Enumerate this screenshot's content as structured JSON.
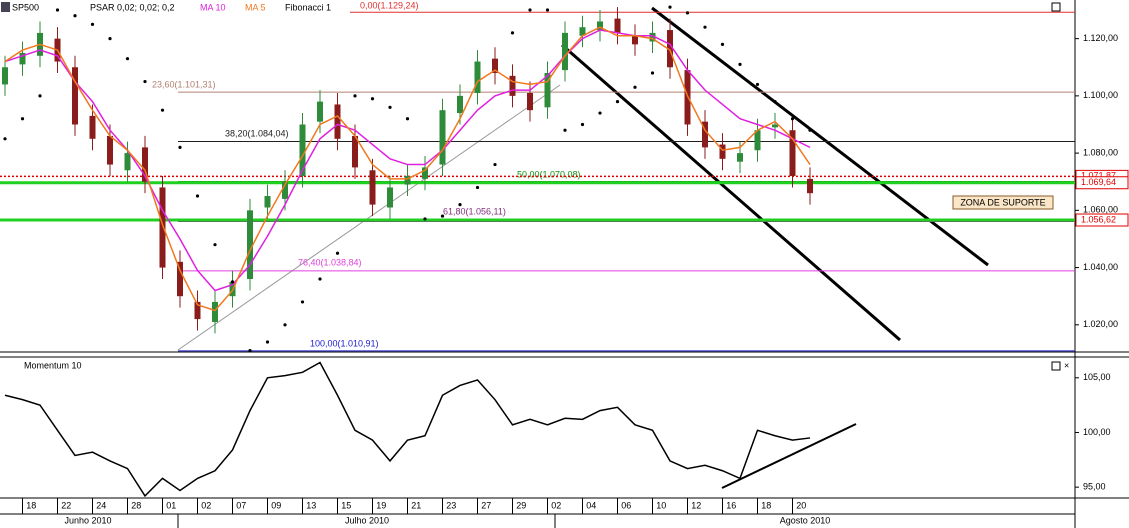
{
  "chart_data": {
    "type": "candlestick",
    "title": "SP500",
    "categories": [
      null,
      null,
      "18",
      null,
      "22",
      null,
      "24",
      null,
      "28",
      null,
      "01",
      null,
      "02",
      null,
      "07",
      null,
      "09",
      null,
      "13",
      null,
      "15",
      null,
      "19",
      null,
      "21",
      null,
      "23",
      null,
      "27",
      null,
      "29",
      null,
      "02",
      null,
      "04",
      null,
      "06",
      null,
      "10",
      null,
      "12",
      null,
      "16",
      null,
      "18",
      null,
      "20"
    ],
    "months": [
      "Junho 2010",
      "Julho 2010",
      "Agosto 2010"
    ],
    "candles": {
      "up_color": "#2e8b3a",
      "down_color": "#8b1c1c",
      "open": [
        1104,
        1111,
        1114,
        1120,
        1110,
        1093,
        1086,
        1074,
        1082,
        1068,
        1042,
        1028,
        1021,
        1030,
        1036,
        1061,
        1064,
        1072,
        1091,
        1097,
        1086,
        1074,
        1061,
        1069,
        1071,
        1076,
        1094,
        1101,
        1113,
        1107,
        1101,
        1096,
        1109,
        1121,
        1123,
        1127,
        1121,
        1119,
        1123,
        1109,
        1091,
        1083,
        1077,
        1081,
        1089,
        1088,
        1071
      ],
      "high": [
        1114,
        1119,
        1126,
        1124,
        1114,
        1097,
        1090,
        1084,
        1086,
        1072,
        1046,
        1032,
        1032,
        1039,
        1064,
        1069,
        1074,
        1094,
        1102,
        1101,
        1090,
        1078,
        1072,
        1076,
        1079,
        1099,
        1104,
        1116,
        1117,
        1111,
        1105,
        1112,
        1126,
        1128,
        1130,
        1131,
        1125,
        1126,
        1127,
        1113,
        1095,
        1087,
        1084,
        1092,
        1094,
        1092,
        1075
      ],
      "low": [
        1100,
        1107,
        1110,
        1108,
        1086,
        1081,
        1072,
        1070,
        1066,
        1036,
        1026,
        1018,
        1017,
        1026,
        1032,
        1057,
        1060,
        1068,
        1087,
        1081,
        1071,
        1058,
        1057,
        1065,
        1067,
        1072,
        1090,
        1097,
        1104,
        1096,
        1091,
        1092,
        1105,
        1117,
        1119,
        1118,
        1114,
        1115,
        1106,
        1086,
        1078,
        1074,
        1073,
        1077,
        1085,
        1068,
        1062
      ],
      "close": [
        1110,
        1115,
        1122,
        1112,
        1090,
        1085,
        1076,
        1080,
        1070,
        1040,
        1030,
        1022,
        1028,
        1035,
        1060,
        1065,
        1070,
        1090,
        1098,
        1085,
        1075,
        1062,
        1068,
        1072,
        1075,
        1095,
        1100,
        1112,
        1108,
        1100,
        1095,
        1108,
        1122,
        1124,
        1126,
        1122,
        1118,
        1122,
        1110,
        1090,
        1082,
        1078,
        1080,
        1088,
        1090,
        1072,
        1066
      ]
    },
    "psar": {
      "name": "PSAR 0,02; 0,02; 0,2",
      "color": "#000000",
      "values": [
        1085,
        1092,
        1100,
        1130,
        1128,
        1125,
        1120,
        1113,
        1105,
        1095,
        1082,
        1065,
        1048,
        1035,
        1011,
        1014,
        1020,
        1028,
        1036,
        1045,
        1100,
        1099,
        1096,
        1092,
        1057,
        1058,
        1062,
        1068,
        1076,
        1122,
        1130,
        1130,
        1088,
        1090,
        1094,
        1098,
        1103,
        1108,
        1131,
        1129,
        1124,
        1118,
        1111,
        1104,
        1098,
        1092,
        1088
      ]
    },
    "series": [
      {
        "name": "MA 10",
        "color": "#e020e0",
        "values": [
          1112,
          1114,
          1116,
          1114,
          1105,
          1098,
          1088,
          1081,
          1072,
          1060,
          1050,
          1039,
          1032,
          1034,
          1041,
          1051,
          1062,
          1074,
          1085,
          1090,
          1088,
          1083,
          1078,
          1076,
          1076,
          1081,
          1088,
          1095,
          1100,
          1102,
          1102,
          1107,
          1114,
          1120,
          1123,
          1122,
          1121,
          1121,
          1118,
          1109,
          1102,
          1097,
          1092,
          1090,
          1088,
          1085,
          1082
        ]
      },
      {
        "name": "MA 5",
        "color": "#f07820",
        "values": [
          1112,
          1116,
          1118,
          1116,
          1105,
          1095,
          1086,
          1081,
          1074,
          1055,
          1039,
          1027,
          1025,
          1032,
          1046,
          1058,
          1069,
          1079,
          1090,
          1093,
          1086,
          1076,
          1071,
          1071,
          1074,
          1081,
          1092,
          1105,
          1109,
          1105,
          1104,
          1105,
          1114,
          1121,
          1124,
          1121,
          1121,
          1120,
          1116,
          1100,
          1088,
          1081,
          1082,
          1088,
          1091,
          1085,
          1076
        ]
      }
    ],
    "fibonacci": {
      "name": "Fibonacci 1",
      "levels": [
        {
          "label": "0,00(1.129,24)",
          "value": 1129.24,
          "color": "#e03030"
        },
        {
          "label": "23,60(1.101,31)",
          "value": 1101.31,
          "color": "#b08070"
        },
        {
          "label": "38,20(1.084,04)",
          "value": 1084.04,
          "color": "#202020"
        },
        {
          "label": "50,00(1.070,08)",
          "value": 1070.08,
          "color": "#109010"
        },
        {
          "label": "61,80(1.056,11)",
          "value": 1056.11,
          "color": "#803080"
        },
        {
          "label": "76,40(1.038,84)",
          "value": 1038.84,
          "color": "#e040e0"
        },
        {
          "label": "100,00(1.010,91)",
          "value": 1010.91,
          "color": "#2020d0"
        }
      ]
    },
    "price_markers": [
      {
        "value": 1071.87,
        "label": "1.071,87",
        "color": "#e00000"
      },
      {
        "value": 1069.64,
        "label": "1.069,64",
        "color": "#20d020"
      },
      {
        "value": 1056.62,
        "label": "1.056,62",
        "color": "#20d020"
      }
    ],
    "annotation": "ZONA DE SUPORTE",
    "ylim": [
      1010.5,
      1133.5
    ],
    "yticks": [
      {
        "value": 1020,
        "label": "1.020,00"
      },
      {
        "value": 1040,
        "label": "1.040,00"
      },
      {
        "value": 1060,
        "label": "1.060,00"
      },
      {
        "value": 1080,
        "label": "1.080,00"
      },
      {
        "value": 1100,
        "label": "1.100,00"
      },
      {
        "value": 1120,
        "label": "1.120,00"
      }
    ],
    "momentum": {
      "type": "line",
      "name": "Momentum 10",
      "color": "#000000",
      "values": [
        103.4,
        103,
        102.5,
        100.2,
        97.9,
        98.2,
        97.4,
        96.7,
        94.2,
        95.8,
        94.7,
        95.8,
        96.5,
        98.4,
        102,
        105,
        105.2,
        105.5,
        106.4,
        103.4,
        100.2,
        99.3,
        97.4,
        99.3,
        99.7,
        103.4,
        104.3,
        104.8,
        103,
        100.7,
        101.2,
        100.7,
        101.3,
        101.2,
        102,
        102.3,
        100.7,
        100.2,
        97.4,
        96.7,
        97,
        96.5,
        95.8,
        100.2,
        99.7,
        99.3,
        99.5
      ],
      "ylim": [
        94.1,
        106.9
      ],
      "yticks": [
        {
          "value": 95,
          "label": "95,00"
        },
        {
          "value": 100,
          "label": "100,00"
        },
        {
          "value": 105,
          "label": "105,00"
        }
      ]
    }
  }
}
